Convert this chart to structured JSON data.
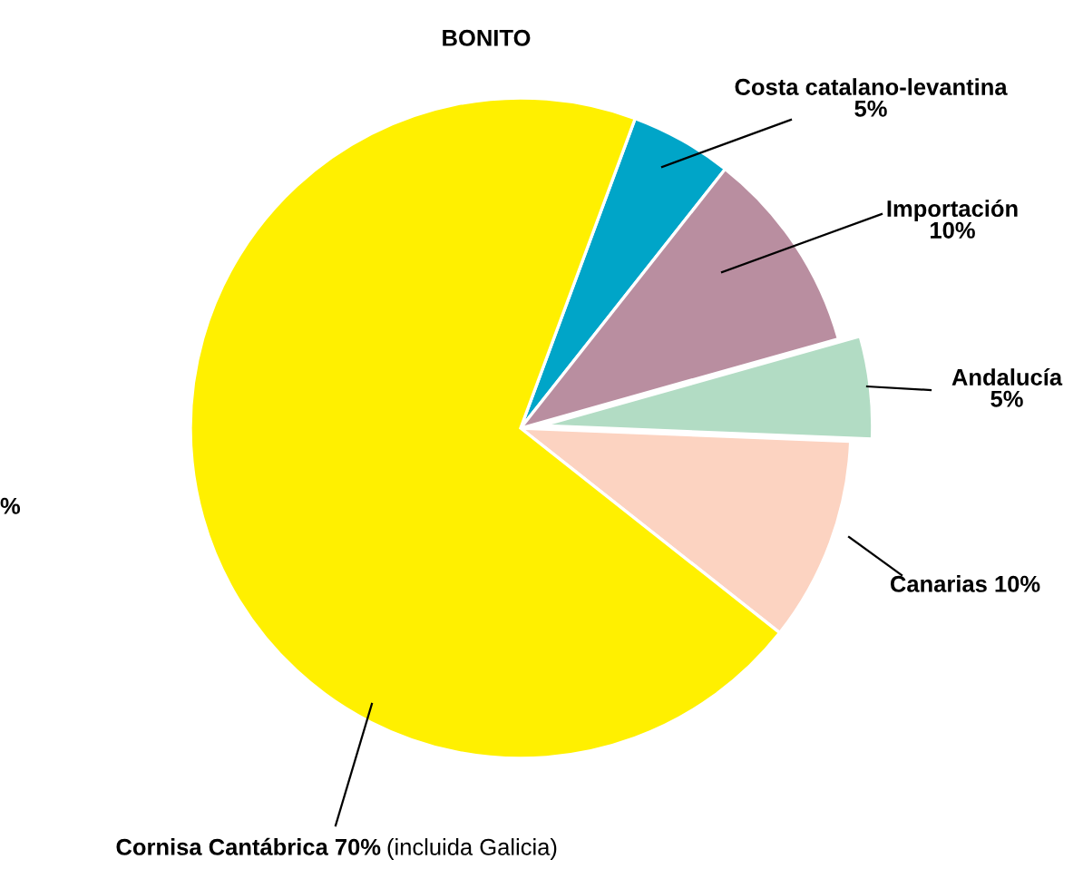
{
  "chart_data": {
    "type": "pie",
    "title": "BONITO",
    "categories": [
      "Costa catalano-levantina",
      "Importación",
      "Andalucía",
      "Canarias",
      "Cornisa Cantábrica"
    ],
    "values": [
      5,
      10,
      5,
      10,
      70
    ],
    "value_labels": [
      "5%",
      "10%",
      "5%",
      "10%",
      "70%"
    ],
    "colors": [
      "#00a5c8",
      "#b98ea0",
      "#b2dcc4",
      "#fcd3c1",
      "#fff000"
    ],
    "annotations": [
      "(incluida Galicia)",
      "%"
    ]
  }
}
